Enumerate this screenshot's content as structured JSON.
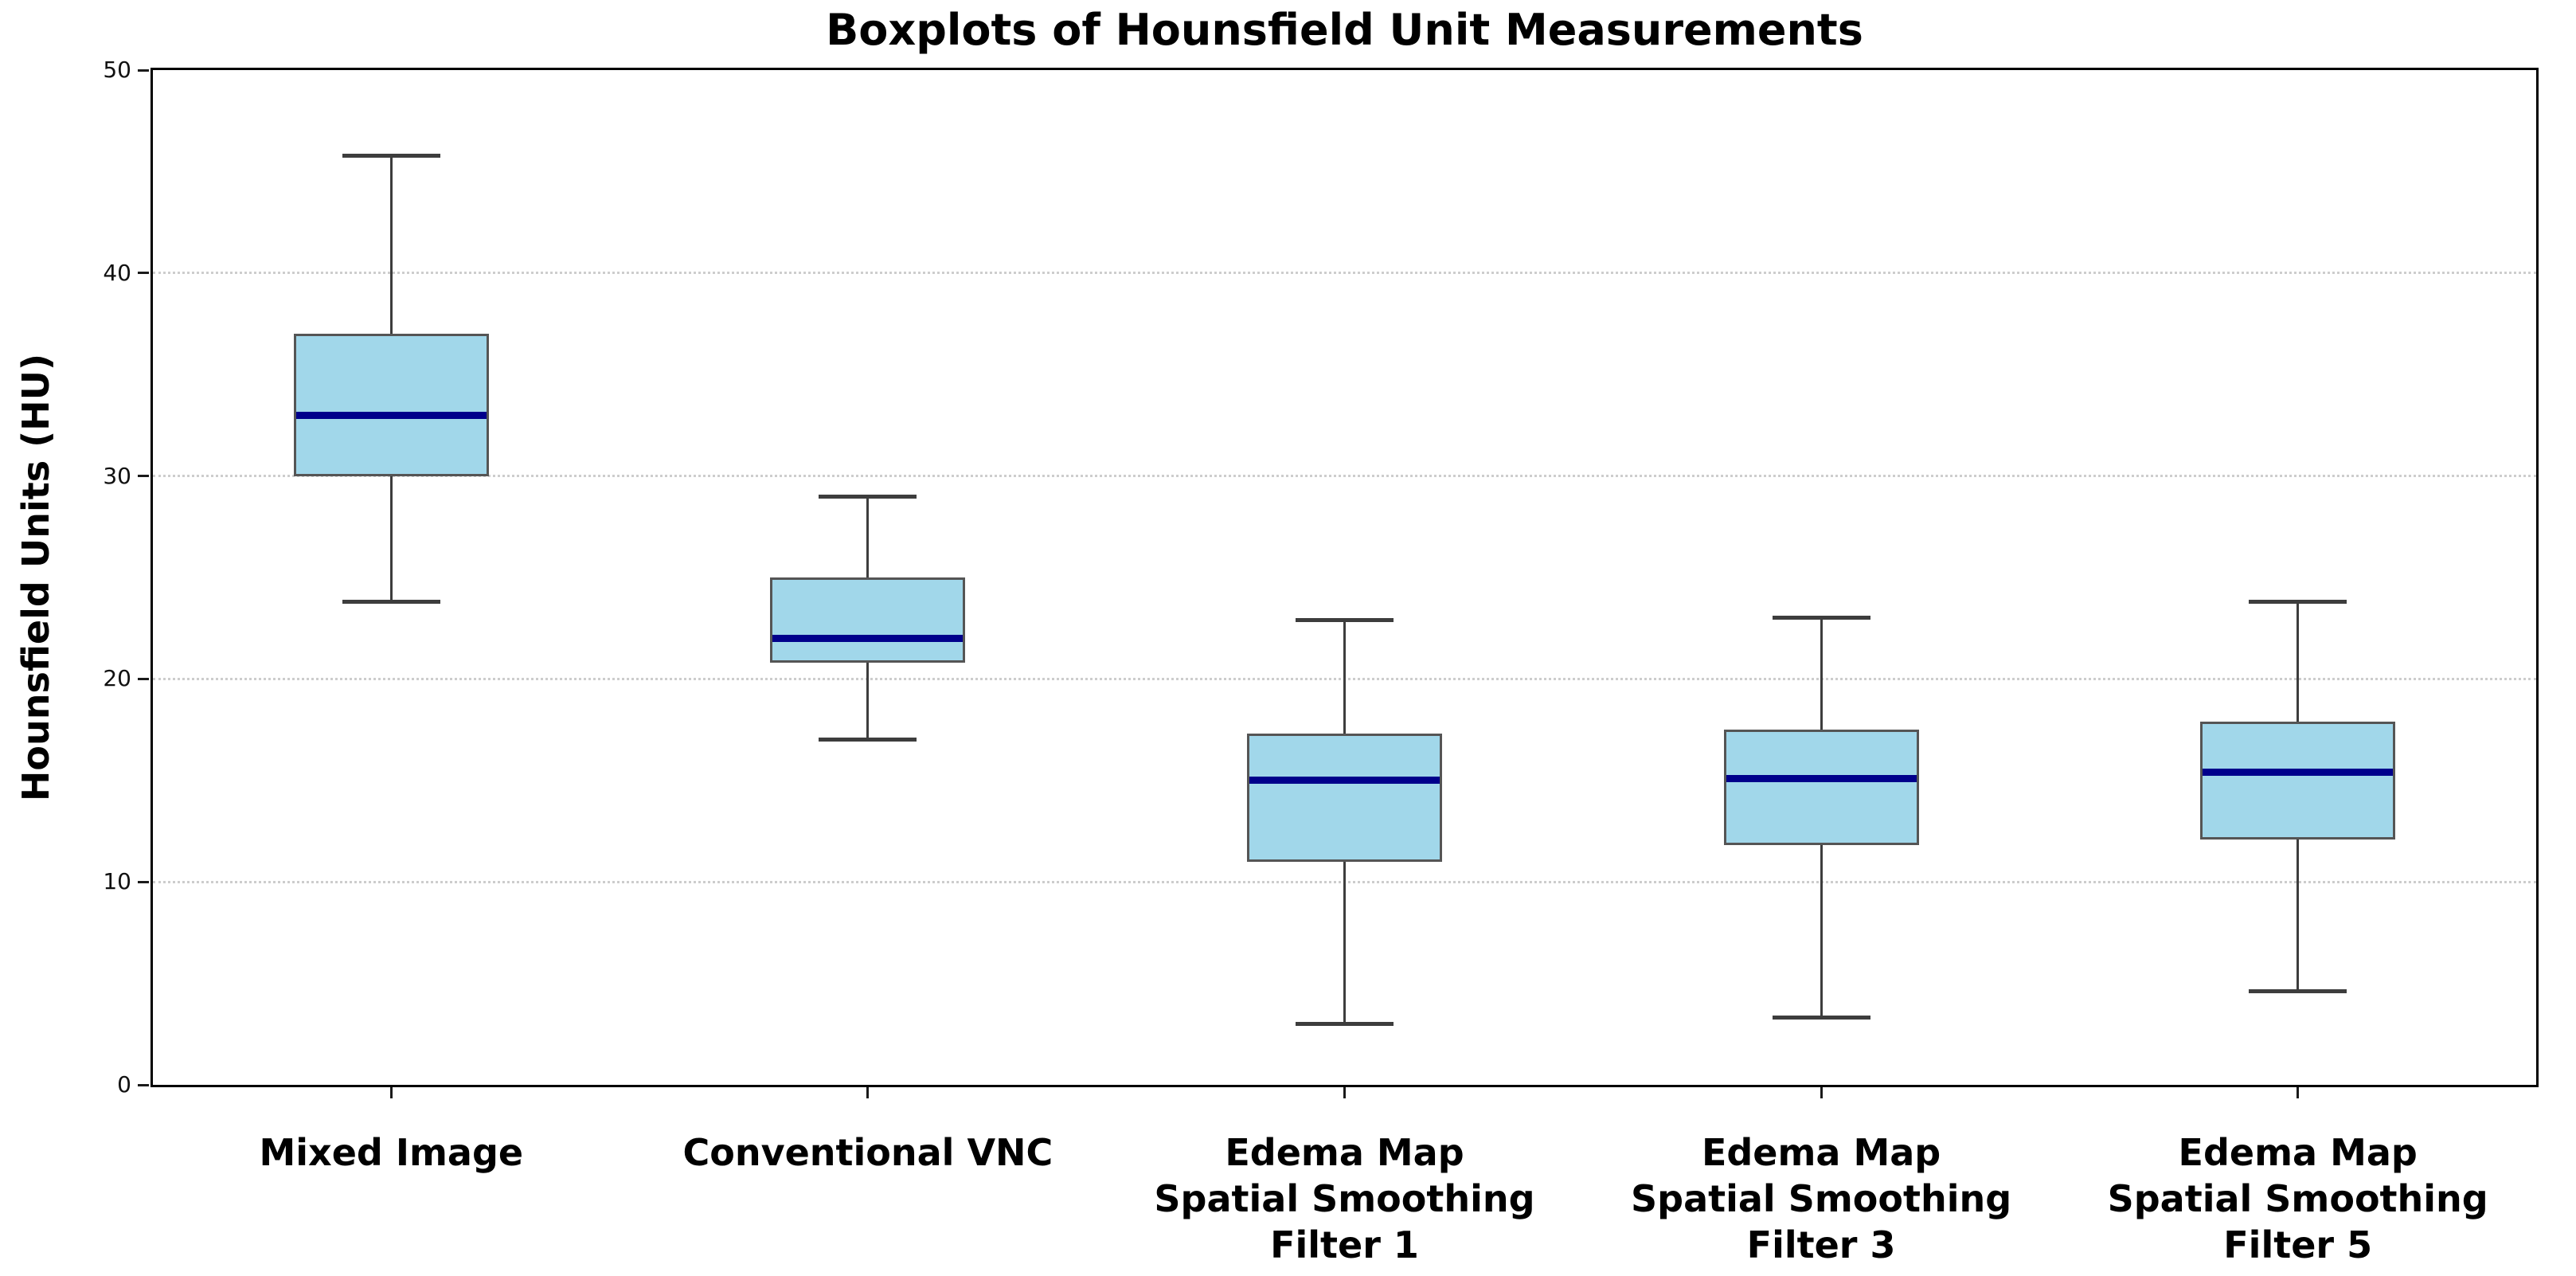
{
  "figure": {
    "title": "Boxplots of Hounsfield Unit Measurements",
    "ylabel": "Hounsfield Units (HU)"
  },
  "chart_data": {
    "type": "boxplot",
    "title": "Boxplots of Hounsfield Unit Measurements",
    "xlabel": "",
    "ylabel": "Hounsfield Units (HU)",
    "ylim": [
      0,
      50
    ],
    "yticks": [
      0,
      10,
      20,
      30,
      40,
      50
    ],
    "grid": "horizontal-dotted-at-10-20-30-40",
    "legend": "none",
    "categories": [
      "Mixed Image",
      "Conventional VNC",
      "Edema Map\nSpatial Smoothing\nFilter 1",
      "Edema Map\nSpatial Smoothing\nFilter 3",
      "Edema Map\nSpatial Smoothing\nFilter 5"
    ],
    "boxes": [
      {
        "label": "Mixed Image",
        "whisker_low": 23.8,
        "q1": 30.0,
        "median": 33.0,
        "q3": 37.0,
        "whisker_high": 45.8
      },
      {
        "label": "Conventional VNC",
        "whisker_low": 17.0,
        "q1": 20.8,
        "median": 22.0,
        "q3": 25.0,
        "whisker_high": 29.0
      },
      {
        "label": "Edema Map\nSpatial Smoothing\nFilter 1",
        "whisker_low": 3.0,
        "q1": 11.0,
        "median": 15.0,
        "q3": 17.3,
        "whisker_high": 22.9
      },
      {
        "label": "Edema Map\nSpatial Smoothing\nFilter 3",
        "whisker_low": 3.3,
        "q1": 11.8,
        "median": 15.1,
        "q3": 17.5,
        "whisker_high": 23.0
      },
      {
        "label": "Edema Map\nSpatial Smoothing\nFilter 5",
        "whisker_low": 4.6,
        "q1": 12.1,
        "median": 15.4,
        "q3": 17.9,
        "whisker_high": 23.8
      }
    ],
    "colors": {
      "box_fill": "#a1d7ea",
      "box_edge": "#555555",
      "median": "#00008b",
      "whisker": "#3d3d3d",
      "grid": "#cdcdcd",
      "axis": "#000000",
      "background": "#ffffff"
    }
  }
}
